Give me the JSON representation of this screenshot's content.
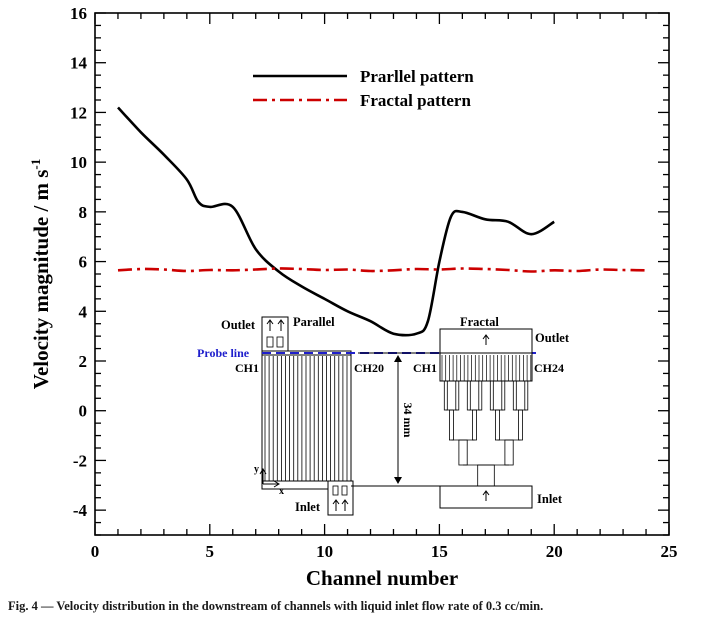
{
  "chart_data": {
    "type": "line",
    "xlabel": "Channel number",
    "ylabel": "Velocity magnitude / m s",
    "ylabel_exp": "-1",
    "xlim": [
      0,
      25
    ],
    "ylim": [
      -5,
      16
    ],
    "xticks": [
      0,
      5,
      10,
      15,
      20,
      25
    ],
    "yticks": [
      -4,
      -2,
      0,
      2,
      4,
      6,
      8,
      10,
      12,
      14,
      16
    ],
    "grid": false,
    "legend_position": "top-center",
    "series": [
      {
        "name": "Prarllel pattern",
        "color": "#000000",
        "style": "solid",
        "x": [
          1,
          2,
          3,
          4,
          4.5,
          5,
          6,
          7,
          8,
          9,
          10,
          11,
          12,
          13,
          14,
          14.5,
          15,
          15.5,
          16,
          17,
          18,
          19,
          20
        ],
        "y": [
          12.2,
          11.2,
          10.3,
          9.3,
          8.4,
          8.2,
          8.2,
          6.5,
          5.6,
          5.0,
          4.5,
          4.0,
          3.6,
          3.1,
          3.1,
          3.6,
          6.0,
          7.8,
          8.0,
          7.7,
          7.6,
          7.1,
          7.6
        ]
      },
      {
        "name": "Fractal pattern",
        "color": "#cc0000",
        "style": "dash-dot",
        "x": [
          1,
          2,
          3,
          4,
          5,
          6,
          7,
          8,
          9,
          10,
          11,
          12,
          13,
          14,
          15,
          16,
          17,
          18,
          19,
          20,
          21,
          22,
          23,
          24
        ],
        "y": [
          5.65,
          5.7,
          5.68,
          5.62,
          5.66,
          5.65,
          5.68,
          5.72,
          5.7,
          5.66,
          5.68,
          5.62,
          5.65,
          5.7,
          5.68,
          5.72,
          5.7,
          5.66,
          5.6,
          5.65,
          5.62,
          5.68,
          5.66,
          5.65
        ]
      }
    ]
  },
  "inset": {
    "parallel": {
      "outlet_label": "Outlet",
      "title": "Parallel",
      "probe_label": "Probe line",
      "first_channel": "CH1",
      "last_channel": "CH20",
      "inlet_label": "Inlet",
      "y_axis": "y",
      "x_axis": "x"
    },
    "dimension_label": "34 mm",
    "fractal": {
      "title": "Fractal",
      "outlet_label": "Outlet",
      "first_channel": "CH1",
      "last_channel": "CH24",
      "inlet_label": "Inlet"
    }
  },
  "caption": "Fig. 4 — Velocity distribution in the downstream of channels with liquid inlet flow rate of 0.3 cc/min."
}
